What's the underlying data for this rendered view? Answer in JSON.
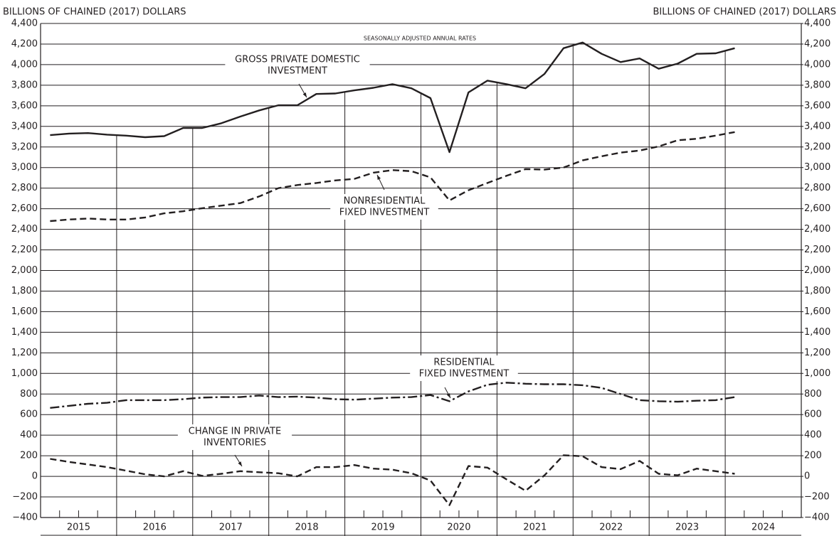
{
  "chart_data": {
    "type": "line",
    "y_title": "BILLIONS OF CHAINED (2017) DOLLARS",
    "y2_title": "BILLIONS OF CHAINED (2017) DOLLARS",
    "subtitle": "SEASONALLY ADJUSTED ANNUAL RATES",
    "x": [
      2015.125,
      2015.375,
      2015.625,
      2015.875,
      2016.125,
      2016.375,
      2016.625,
      2016.875,
      2017.125,
      2017.375,
      2017.625,
      2017.875,
      2018.125,
      2018.375,
      2018.625,
      2018.875,
      2019.125,
      2019.375,
      2019.625,
      2019.875,
      2020.125,
      2020.375,
      2020.625,
      2020.875,
      2021.125,
      2021.375,
      2021.625,
      2021.875,
      2022.125,
      2022.375,
      2022.625,
      2022.875,
      2023.125,
      2023.375,
      2023.625,
      2023.875,
      2024.125
    ],
    "xlim": [
      2015,
      2025
    ],
    "xticks": [
      2015,
      2016,
      2017,
      2018,
      2019,
      2020,
      2021,
      2022,
      2023,
      2024
    ],
    "ylim": [
      -400,
      4400
    ],
    "yticks": [
      {
        "value": -400,
        "label": "−400"
      },
      {
        "value": -200,
        "label": "−200"
      },
      0,
      200,
      400,
      600,
      800,
      {
        "value": 1000,
        "label": "1,000"
      },
      {
        "value": 1200,
        "label": "1,200"
      },
      {
        "value": 1400,
        "label": "1,400"
      },
      {
        "value": 1600,
        "label": "1,600"
      },
      {
        "value": 1800,
        "label": "1,800"
      },
      {
        "value": 2000,
        "label": "2,000"
      },
      {
        "value": 2200,
        "label": "2,200"
      },
      {
        "value": 2400,
        "label": "2,400"
      },
      {
        "value": 2600,
        "label": "2,600"
      },
      {
        "value": 2800,
        "label": "2,800"
      },
      {
        "value": 3000,
        "label": "3,000"
      },
      {
        "value": 3200,
        "label": "3,200"
      },
      {
        "value": 3400,
        "label": "3,400"
      },
      {
        "value": 3600,
        "label": "3,600"
      },
      {
        "value": 3800,
        "label": "3,800"
      },
      {
        "value": 4000,
        "label": "4,000"
      },
      {
        "value": 4200,
        "label": "4,200"
      },
      {
        "value": 4400,
        "label": "4,400"
      }
    ],
    "y2lim": [
      -400,
      4400
    ],
    "y2ticks": [
      {
        "value": -400,
        "label": "−400"
      },
      {
        "value": -200,
        "label": "−200"
      },
      0,
      200,
      400,
      600,
      800,
      {
        "value": 1000,
        "label": "1,000"
      },
      {
        "value": 1200,
        "label": "1,200"
      },
      {
        "value": 1400,
        "label": "1,400"
      },
      {
        "value": 1600,
        "label": "1,600"
      },
      {
        "value": 1800,
        "label": "1,800"
      },
      {
        "value": 2000,
        "label": "2,000"
      },
      {
        "value": 2200,
        "label": "2,200"
      },
      {
        "value": 2400,
        "label": "2,400"
      },
      {
        "value": 2600,
        "label": "2,600"
      },
      {
        "value": 2800,
        "label": "2,800"
      },
      {
        "value": 3000,
        "label": "3,000"
      },
      {
        "value": 3200,
        "label": "3,200"
      },
      {
        "value": 3400,
        "label": "3,400"
      },
      {
        "value": 3600,
        "label": "3,600"
      },
      {
        "value": 3800,
        "label": "3,800"
      },
      {
        "value": 4000,
        "label": "4,000"
      },
      {
        "value": 4200,
        "label": "4,200"
      },
      {
        "value": 4400,
        "label": "4,400"
      }
    ],
    "grid": true,
    "series": [
      {
        "name": [
          "GROSS PRIVATE DOMESTIC",
          "INVESTMENT"
        ],
        "color": "#231f20",
        "style": "solid",
        "values": [
          3315,
          3330,
          3335,
          3320,
          3310,
          3295,
          3305,
          3385,
          3385,
          3430,
          3495,
          3555,
          3605,
          3605,
          3715,
          3720,
          3750,
          3775,
          3810,
          3770,
          3675,
          3150,
          3730,
          3845,
          3810,
          3770,
          3910,
          4160,
          4215,
          4105,
          4025,
          4060,
          3960,
          4010,
          4105,
          4110,
          4160
        ]
      },
      {
        "name": [
          "NONRESIDENTIAL",
          "FIXED INVESTMENT"
        ],
        "color": "#231f20",
        "style": "dashed",
        "values": [
          2480,
          2495,
          2505,
          2495,
          2495,
          2515,
          2555,
          2575,
          2605,
          2630,
          2655,
          2720,
          2800,
          2830,
          2850,
          2875,
          2890,
          2950,
          2975,
          2965,
          2905,
          2680,
          2780,
          2850,
          2920,
          2985,
          2980,
          3000,
          3070,
          3110,
          3145,
          3165,
          3205,
          3265,
          3280,
          3310,
          3345
        ]
      },
      {
        "name": [
          "RESIDENTIAL",
          "FIXED INVESTMENT"
        ],
        "color": "#231f20",
        "style": "dashdot",
        "values": [
          665,
          685,
          705,
          715,
          740,
          740,
          740,
          750,
          765,
          770,
          770,
          785,
          770,
          775,
          765,
          750,
          745,
          755,
          765,
          770,
          790,
          730,
          825,
          890,
          910,
          900,
          895,
          895,
          885,
          860,
          800,
          740,
          730,
          725,
          735,
          740,
          770
        ]
      },
      {
        "name": [
          "CHANGE IN PRIVATE",
          "INVENTORIES"
        ],
        "color": "#231f20",
        "style": "dashed",
        "values": [
          170,
          140,
          115,
          90,
          55,
          20,
          0,
          50,
          5,
          25,
          50,
          40,
          30,
          0,
          90,
          90,
          110,
          75,
          65,
          30,
          -40,
          -280,
          100,
          85,
          -30,
          -140,
          10,
          205,
          195,
          90,
          70,
          150,
          25,
          10,
          75,
          50,
          25
        ]
      }
    ]
  }
}
